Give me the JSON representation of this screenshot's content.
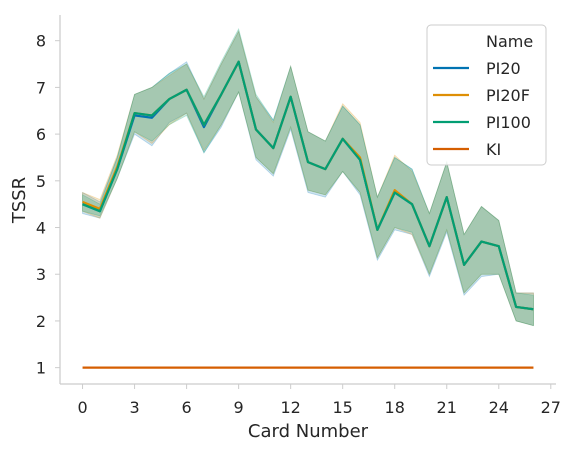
{
  "chart_data": {
    "type": "line",
    "title": "",
    "xlabel": "Card Number",
    "ylabel": "TSSR",
    "xlim": [
      -1.3,
      27.3
    ],
    "ylim": [
      0.65,
      8.55
    ],
    "xticks": [
      0,
      3,
      6,
      9,
      12,
      15,
      18,
      21,
      24,
      27
    ],
    "yticks": [
      1,
      2,
      3,
      4,
      5,
      6,
      7,
      8
    ],
    "grid": false,
    "legend": {
      "title": "Name",
      "position": "top-right",
      "entries": [
        "PI20",
        "PI20F",
        "PI100",
        "KI"
      ]
    },
    "x": [
      0,
      1,
      2,
      3,
      4,
      5,
      6,
      7,
      8,
      9,
      10,
      11,
      12,
      13,
      14,
      15,
      16,
      17,
      18,
      19,
      20,
      21,
      22,
      23,
      24,
      25,
      26
    ],
    "series": [
      {
        "name": "PI20",
        "color": "#0173b2",
        "values": [
          4.5,
          4.35,
          5.25,
          6.4,
          6.35,
          6.75,
          6.95,
          6.15,
          6.85,
          7.55,
          6.1,
          5.7,
          6.8,
          5.4,
          5.25,
          5.9,
          5.45,
          3.95,
          4.75,
          4.5,
          3.6,
          4.65,
          3.2,
          3.7,
          3.6,
          2.3,
          2.25
        ],
        "ci_lower": [
          4.3,
          4.2,
          5.05,
          6.0,
          5.75,
          6.25,
          6.45,
          5.6,
          6.15,
          6.9,
          5.45,
          5.1,
          6.1,
          4.75,
          4.65,
          5.2,
          4.7,
          3.3,
          3.95,
          3.85,
          2.95,
          3.9,
          2.55,
          2.95,
          3.0,
          2.0,
          1.9
        ],
        "ci_upper": [
          4.75,
          4.55,
          5.5,
          6.85,
          7.0,
          7.3,
          7.55,
          6.75,
          7.5,
          8.2,
          6.8,
          6.3,
          7.45,
          6.05,
          5.85,
          6.6,
          6.2,
          4.65,
          5.5,
          5.25,
          4.3,
          5.4,
          3.85,
          4.45,
          4.15,
          2.6,
          2.6
        ],
        "style": "line with shaded confidence band"
      },
      {
        "name": "PI20F",
        "color": "#de8f05",
        "values": [
          4.55,
          4.4,
          5.3,
          6.45,
          6.4,
          6.75,
          6.95,
          6.2,
          6.85,
          7.55,
          6.1,
          5.7,
          6.8,
          5.4,
          5.25,
          5.9,
          5.5,
          3.95,
          4.8,
          4.5,
          3.6,
          4.65,
          3.2,
          3.7,
          3.6,
          2.3,
          2.25
        ],
        "ci_lower": [
          4.35,
          4.2,
          5.05,
          6.05,
          5.8,
          6.2,
          6.45,
          5.65,
          6.2,
          6.9,
          5.5,
          5.15,
          6.15,
          4.8,
          4.7,
          5.2,
          4.75,
          3.35,
          4.0,
          3.85,
          3.0,
          3.95,
          2.6,
          3.0,
          3.0,
          2.0,
          1.9
        ],
        "ci_upper": [
          4.75,
          4.6,
          5.55,
          6.85,
          7.0,
          7.25,
          7.5,
          6.75,
          7.5,
          8.2,
          6.8,
          6.25,
          7.45,
          6.05,
          5.85,
          6.65,
          6.25,
          4.65,
          5.55,
          5.2,
          4.3,
          5.4,
          3.85,
          4.45,
          4.15,
          2.6,
          2.6
        ],
        "style": "line with shaded confidence band"
      },
      {
        "name": "PI100",
        "color": "#029e73",
        "values": [
          4.5,
          4.35,
          5.25,
          6.45,
          6.4,
          6.75,
          6.95,
          6.2,
          6.85,
          7.55,
          6.1,
          5.7,
          6.8,
          5.4,
          5.25,
          5.9,
          5.45,
          3.95,
          4.75,
          4.5,
          3.6,
          4.65,
          3.2,
          3.7,
          3.6,
          2.3,
          2.25
        ],
        "ci_lower": [
          4.35,
          4.25,
          5.05,
          6.05,
          5.85,
          6.2,
          6.4,
          5.6,
          6.2,
          6.9,
          5.5,
          5.15,
          6.15,
          4.8,
          4.7,
          5.2,
          4.75,
          3.35,
          4.0,
          3.9,
          3.0,
          3.95,
          2.6,
          3.0,
          3.0,
          2.0,
          1.9
        ],
        "ci_upper": [
          4.7,
          4.5,
          5.5,
          6.85,
          7.0,
          7.3,
          7.5,
          6.8,
          7.55,
          8.25,
          6.85,
          6.3,
          7.45,
          6.05,
          5.85,
          6.6,
          6.2,
          4.65,
          5.5,
          5.25,
          4.3,
          5.4,
          3.85,
          4.45,
          4.15,
          2.6,
          2.55
        ],
        "style": "line with shaded confidence band"
      },
      {
        "name": "KI",
        "color": "#d55e00",
        "values": [
          1,
          1,
          1,
          1,
          1,
          1,
          1,
          1,
          1,
          1,
          1,
          1,
          1,
          1,
          1,
          1,
          1,
          1,
          1,
          1,
          1,
          1,
          1,
          1,
          1,
          1,
          1
        ],
        "style": "line"
      }
    ]
  }
}
